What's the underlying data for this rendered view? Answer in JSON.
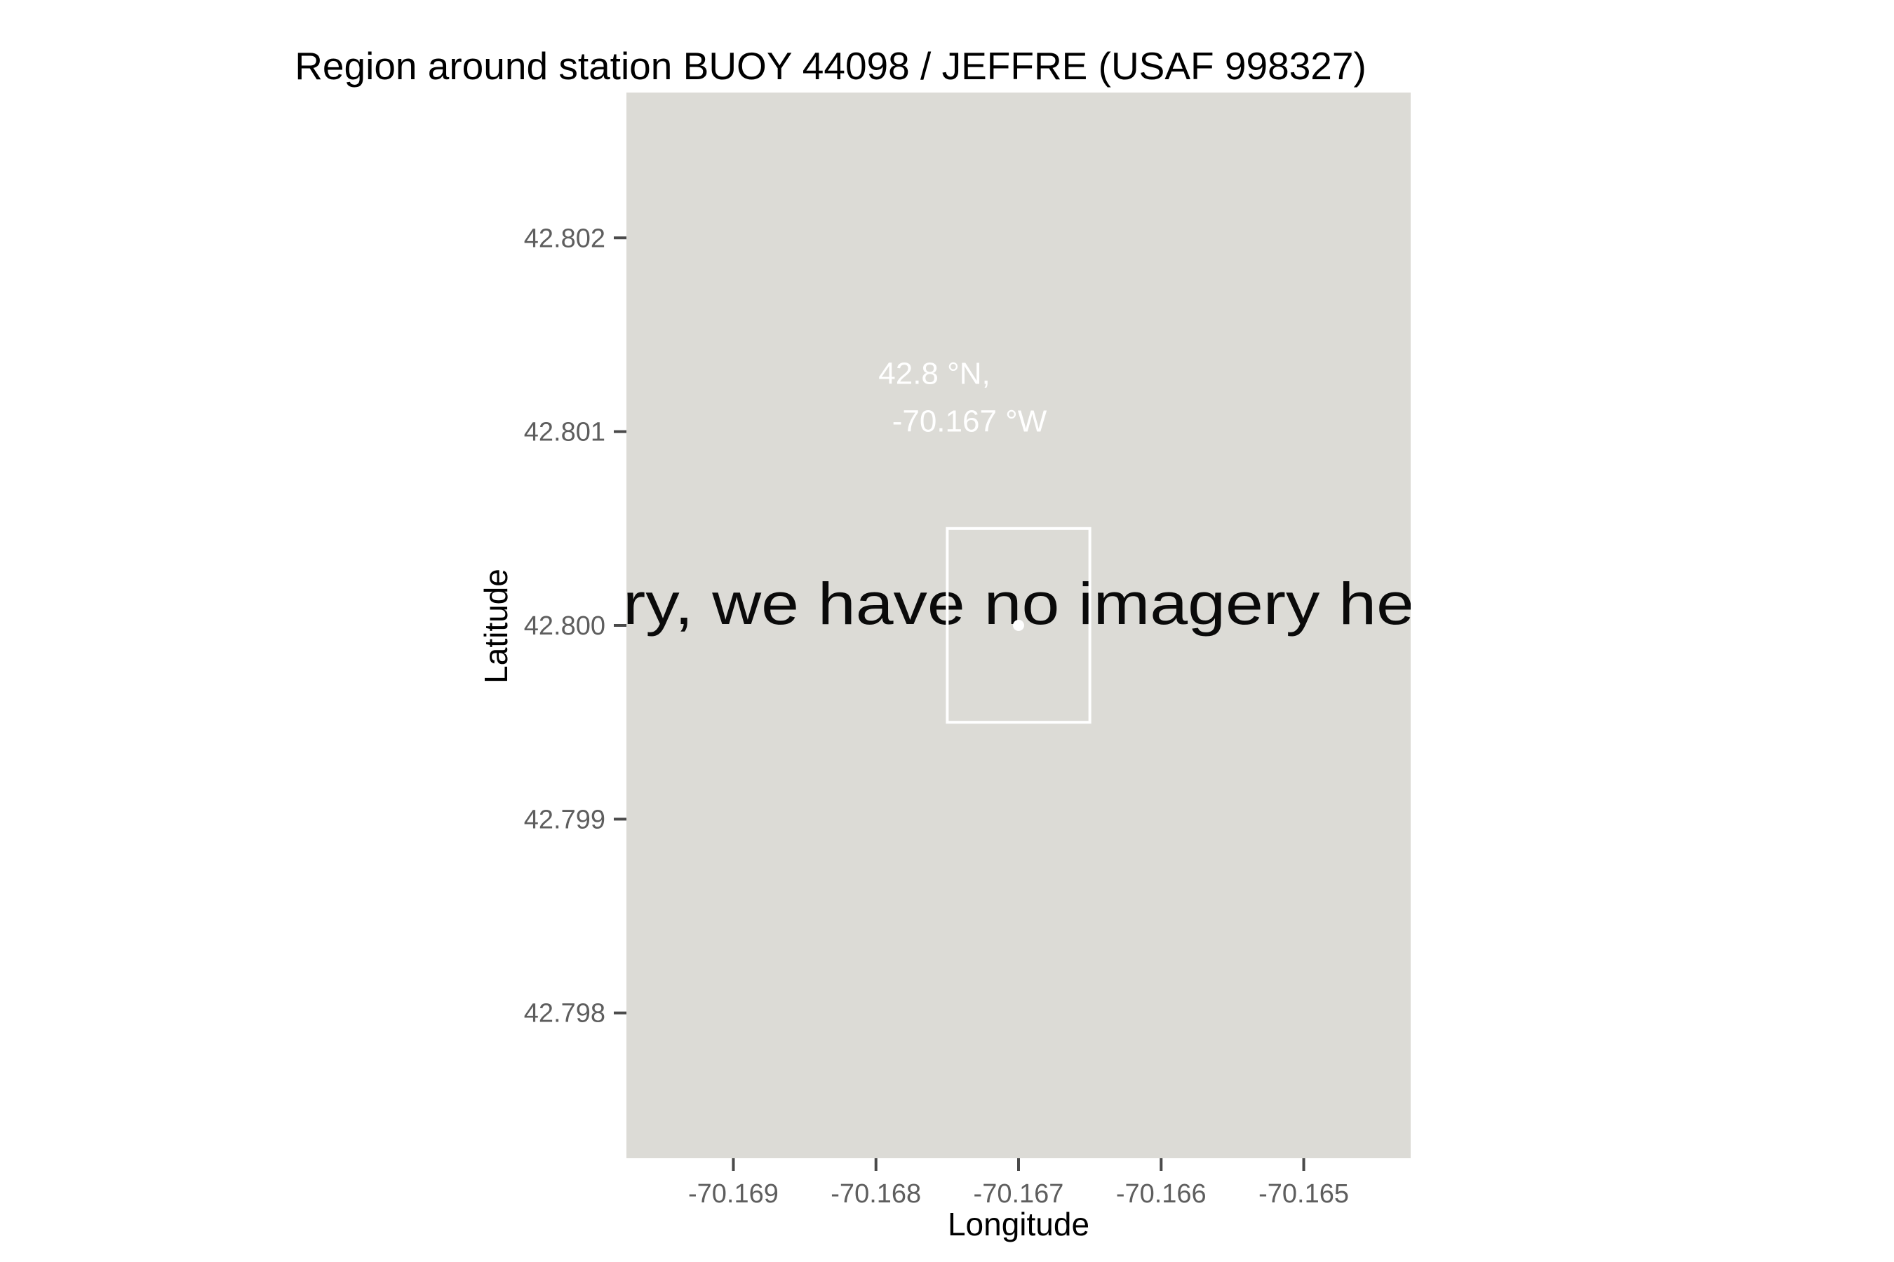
{
  "title": "Region around station BUOY 44098 / JEFFRE (USAF 998327)",
  "colors": {
    "panel_background": "#dcdbd6",
    "marker": "#ffffff",
    "box_outline": "#ffffff",
    "tick_label": "#5e5e5e",
    "tile_text": "#0a0a0a"
  },
  "map": {
    "tile_message": "orry, we have no imagery here",
    "coordinate_label": {
      "line1": "42.8 °N,",
      "line2": "-70.167 °W"
    }
  },
  "chart_data": {
    "type": "scatter",
    "xlabel": "Longitude",
    "ylabel": "Latitude",
    "xlim": [
      -70.16975,
      -70.16425
    ],
    "ylim": [
      42.79725,
      42.80275
    ],
    "x_ticks": [
      -70.169,
      -70.168,
      -70.167,
      -70.166,
      -70.165
    ],
    "x_tick_labels": [
      "-70.169",
      "-70.168",
      "-70.167",
      "-70.166",
      "-70.165"
    ],
    "y_ticks": [
      42.802,
      42.801,
      42.8,
      42.799,
      42.798
    ],
    "y_tick_labels": [
      "42.802",
      "42.801",
      "42.800",
      "42.799",
      "42.798"
    ],
    "grid": false,
    "points": [
      {
        "lon": -70.167,
        "lat": 42.8
      }
    ],
    "box": {
      "lon_min": -70.1675,
      "lon_max": -70.1665,
      "lat_min": 42.7995,
      "lat_max": 42.8005
    },
    "label_anchor": {
      "lon": -70.167,
      "lat": 42.801
    }
  }
}
